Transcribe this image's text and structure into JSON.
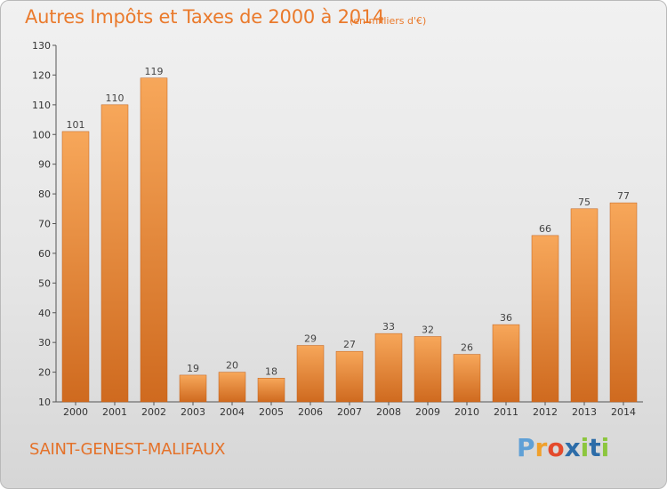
{
  "header": {
    "title": "Autres Impôts et Taxes de 2000 à 2014",
    "subtitle": "(en milliers d'€)"
  },
  "footer": {
    "city": "SAINT-GENEST-MALIFAUX",
    "logo": {
      "letters": [
        "P",
        "r",
        "o",
        "x",
        "i",
        "t",
        "i"
      ],
      "colors": [
        "#5fa0d6",
        "#f0a02c",
        "#e44a2c",
        "#2c6ca8",
        "#8cc63e",
        "#2c6ca8",
        "#8cc63e"
      ]
    }
  },
  "chart_data": {
    "type": "bar",
    "title": "Autres Impôts et Taxes de 2000 à 2014",
    "subtitle": "(en milliers d'€)",
    "categories": [
      "2000",
      "2001",
      "2002",
      "2003",
      "2004",
      "2005",
      "2006",
      "2007",
      "2008",
      "2009",
      "2010",
      "2011",
      "2012",
      "2013",
      "2014"
    ],
    "values": [
      101,
      110,
      119,
      19,
      20,
      18,
      29,
      27,
      33,
      32,
      26,
      36,
      66,
      75,
      77
    ],
    "ylim": [
      10,
      130
    ],
    "yticks": [
      10,
      20,
      30,
      40,
      50,
      60,
      70,
      80,
      90,
      100,
      110,
      120,
      130
    ],
    "grid": false,
    "bar_color": "#f09a4a",
    "bar_color_dark": "#c8621a",
    "xlabel": "",
    "ylabel": ""
  }
}
